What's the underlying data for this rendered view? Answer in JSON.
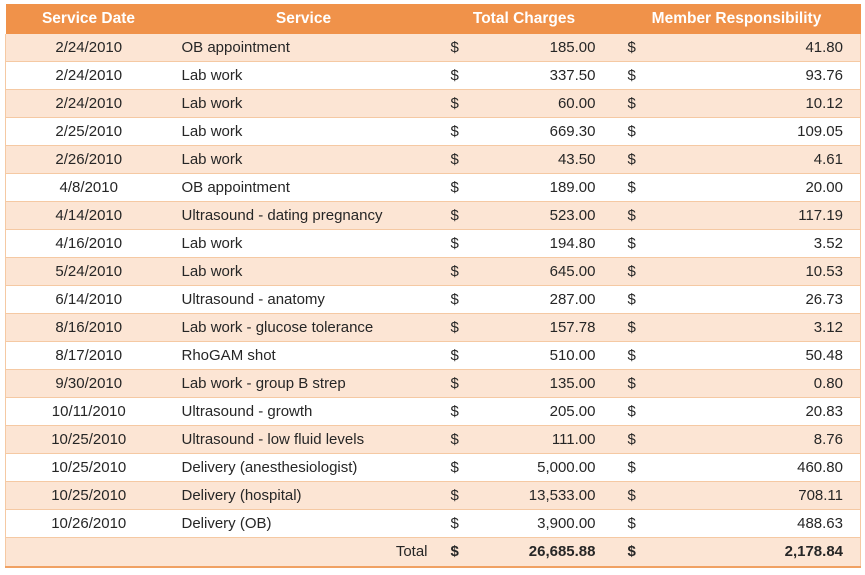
{
  "colors": {
    "header_bg": "#F0924A",
    "header_text": "#FFFFFF",
    "band_row_bg": "#FCE5D4",
    "plain_row_bg": "#FFFFFF",
    "row_separator": "#F5C9A3",
    "total_border": "#F0A163",
    "body_text": "#262626"
  },
  "table": {
    "currency_symbol": "$",
    "columns": [
      {
        "label": "Service Date"
      },
      {
        "label": "Service"
      },
      {
        "label": "Total Charges"
      },
      {
        "label": "Member Responsibility"
      }
    ],
    "rows": [
      {
        "date": "2/24/2010",
        "service": "OB appointment",
        "charges": "185.00",
        "member": "41.80"
      },
      {
        "date": "2/24/2010",
        "service": "Lab work",
        "charges": "337.50",
        "member": "93.76"
      },
      {
        "date": "2/24/2010",
        "service": "Lab work",
        "charges": "60.00",
        "member": "10.12"
      },
      {
        "date": "2/25/2010",
        "service": "Lab work",
        "charges": "669.30",
        "member": "109.05"
      },
      {
        "date": "2/26/2010",
        "service": "Lab work",
        "charges": "43.50",
        "member": "4.61"
      },
      {
        "date": "4/8/2010",
        "service": "OB appointment",
        "charges": "189.00",
        "member": "20.00"
      },
      {
        "date": "4/14/2010",
        "service": "Ultrasound - dating pregnancy",
        "charges": "523.00",
        "member": "117.19"
      },
      {
        "date": "4/16/2010",
        "service": "Lab work",
        "charges": "194.80",
        "member": "3.52"
      },
      {
        "date": "5/24/2010",
        "service": "Lab work",
        "charges": "645.00",
        "member": "10.53"
      },
      {
        "date": "6/14/2010",
        "service": "Ultrasound - anatomy",
        "charges": "287.00",
        "member": "26.73"
      },
      {
        "date": "8/16/2010",
        "service": "Lab work - glucose tolerance",
        "charges": "157.78",
        "member": "3.12"
      },
      {
        "date": "8/17/2010",
        "service": "RhoGAM shot",
        "charges": "510.00",
        "member": "50.48"
      },
      {
        "date": "9/30/2010",
        "service": "Lab work - group B strep",
        "charges": "135.00",
        "member": "0.80"
      },
      {
        "date": "10/11/2010",
        "service": "Ultrasound - growth",
        "charges": "205.00",
        "member": "20.83"
      },
      {
        "date": "10/25/2010",
        "service": "Ultrasound - low fluid levels",
        "charges": "111.00",
        "member": "8.76"
      },
      {
        "date": "10/25/2010",
        "service": "Delivery (anesthesiologist)",
        "charges": "5,000.00",
        "member": "460.80"
      },
      {
        "date": "10/25/2010",
        "service": "Delivery (hospital)",
        "charges": "13,533.00",
        "member": "708.11"
      },
      {
        "date": "10/26/2010",
        "service": "Delivery (OB)",
        "charges": "3,900.00",
        "member": "488.63"
      }
    ],
    "total": {
      "label": "Total",
      "charges": "26,685.88",
      "member": "2,178.84"
    }
  },
  "chart_data": {
    "type": "table",
    "title": "",
    "columns": [
      "Service Date",
      "Service",
      "Total Charges",
      "Member Responsibility"
    ],
    "rows": [
      [
        "2/24/2010",
        "OB appointment",
        185.0,
        41.8
      ],
      [
        "2/24/2010",
        "Lab work",
        337.5,
        93.76
      ],
      [
        "2/24/2010",
        "Lab work",
        60.0,
        10.12
      ],
      [
        "2/25/2010",
        "Lab work",
        669.3,
        109.05
      ],
      [
        "2/26/2010",
        "Lab work",
        43.5,
        4.61
      ],
      [
        "4/8/2010",
        "OB appointment",
        189.0,
        20.0
      ],
      [
        "4/14/2010",
        "Ultrasound - dating pregnancy",
        523.0,
        117.19
      ],
      [
        "4/16/2010",
        "Lab work",
        194.8,
        3.52
      ],
      [
        "5/24/2010",
        "Lab work",
        645.0,
        10.53
      ],
      [
        "6/14/2010",
        "Ultrasound - anatomy",
        287.0,
        26.73
      ],
      [
        "8/16/2010",
        "Lab work - glucose tolerance",
        157.78,
        3.12
      ],
      [
        "8/17/2010",
        "RhoGAM shot",
        510.0,
        50.48
      ],
      [
        "9/30/2010",
        "Lab work - group B strep",
        135.0,
        0.8
      ],
      [
        "10/11/2010",
        "Ultrasound - growth",
        205.0,
        20.83
      ],
      [
        "10/25/2010",
        "Ultrasound - low fluid levels",
        111.0,
        8.76
      ],
      [
        "10/25/2010",
        "Delivery (anesthesiologist)",
        5000.0,
        460.8
      ],
      [
        "10/25/2010",
        "Delivery (hospital)",
        13533.0,
        708.11
      ],
      [
        "10/26/2010",
        "Delivery (OB)",
        3900.0,
        488.63
      ]
    ],
    "totals": {
      "label": "Total",
      "total_charges": 26685.88,
      "member_responsibility": 2178.84
    }
  }
}
